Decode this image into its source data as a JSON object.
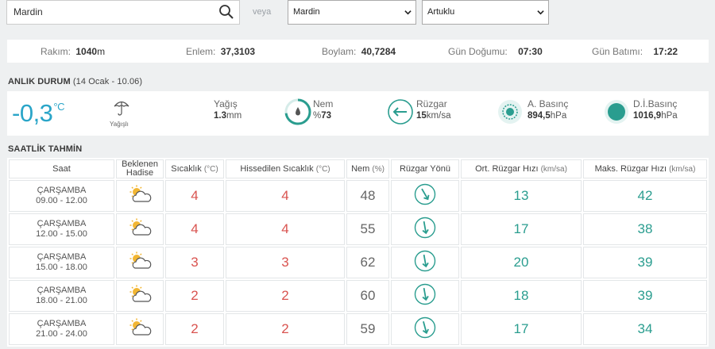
{
  "search": {
    "value": "Mardin",
    "or_label": "veya",
    "city_select": "Mardin",
    "district_select": "Artuklu"
  },
  "info": {
    "altitude_label": "Rakım:",
    "altitude_value": "1040",
    "altitude_unit": "m",
    "lat_label": "Enlem:",
    "lat_value": "37,3103",
    "lon_label": "Boylam:",
    "lon_value": "40,7284",
    "sunrise_label": "Gün Doğumu:",
    "sunrise_value": "07:30",
    "sunset_label": "Gün Batımı:",
    "sunset_value": "17:22"
  },
  "current": {
    "title": "ANLIK DURUM",
    "subtitle": "(14 Ocak - 10.06)",
    "temp": "-0,3",
    "temp_unit": "°C",
    "condition": "Yağışlı",
    "rain_label": "Yağış",
    "rain_value": "1.3",
    "rain_unit": "mm",
    "humidity_label": "Nem",
    "humidity_prefix": "%",
    "humidity_value": "73",
    "humidity_fraction": 0.73,
    "wind_label": "Rüzgar",
    "wind_value": "15",
    "wind_unit": "km/sa",
    "pressure_label": "A. Basınç",
    "pressure_value": "894,5",
    "pressure_unit": "hPa",
    "sea_pressure_label": "D.İ.Basınç",
    "sea_pressure_value": "1016,9",
    "sea_pressure_unit": "hPa"
  },
  "forecast": {
    "title": "SAATLİK TAHMİN",
    "headers": {
      "time": "Saat",
      "weather_1": "Beklenen",
      "weather_2": "Hadise",
      "temp": "Sıcaklık",
      "temp_unit": "(°C)",
      "feels": "Hissedilen Sıcaklık",
      "feels_unit": "(°C)",
      "humidity": "Nem",
      "humidity_unit": "(%)",
      "wind_dir": "Rüzgar Yönü",
      "avg_wind": "Ort. Rüzgar Hızı",
      "avg_wind_unit": "(km/sa)",
      "max_wind": "Maks. Rüzgar Hızı",
      "max_wind_unit": "(km/sa)"
    },
    "rows": [
      {
        "day": "ÇARŞAMBA",
        "range": "09.00 - 12.00",
        "icon": "partly-cloudy-icon",
        "temp": "4",
        "feels": "4",
        "humidity": "48",
        "wind_dir_deg": 150,
        "avg_wind": "13",
        "max_wind": "42"
      },
      {
        "day": "ÇARŞAMBA",
        "range": "12.00 - 15.00",
        "icon": "partly-cloudy-icon",
        "temp": "4",
        "feels": "4",
        "humidity": "55",
        "wind_dir_deg": 170,
        "avg_wind": "17",
        "max_wind": "38"
      },
      {
        "day": "ÇARŞAMBA",
        "range": "15.00 - 18.00",
        "icon": "partly-cloudy-icon",
        "temp": "3",
        "feels": "3",
        "humidity": "62",
        "wind_dir_deg": 170,
        "avg_wind": "20",
        "max_wind": "39"
      },
      {
        "day": "ÇARŞAMBA",
        "range": "18.00 - 21.00",
        "icon": "partly-cloudy-icon",
        "temp": "2",
        "feels": "2",
        "humidity": "60",
        "wind_dir_deg": 170,
        "avg_wind": "18",
        "max_wind": "39"
      },
      {
        "day": "ÇARŞAMBA",
        "range": "21.00 - 24.00",
        "icon": "partly-cloudy-icon",
        "temp": "2",
        "feels": "2",
        "humidity": "59",
        "wind_dir_deg": 165,
        "avg_wind": "17",
        "max_wind": "34"
      }
    ]
  },
  "colors": {
    "accent": "#2aa5c8",
    "teal": "#2a9d8f",
    "red": "#d9534f",
    "sun": "#f2b632"
  }
}
